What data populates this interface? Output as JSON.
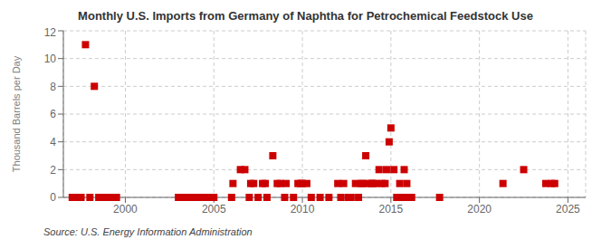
{
  "chart_data": {
    "type": "scatter",
    "title": "Monthly U.S. Imports from Germany of Naphtha for Petrochemical Feedstock Use",
    "ylabel": "Thousand Barrels per Day",
    "source": "Source: U.S. Energy Information Administration",
    "color": "#cc0000",
    "marker": "square",
    "grid": true,
    "xlim": [
      1996.5,
      2026
    ],
    "ylim": [
      0,
      12
    ],
    "yticks": [
      0,
      2,
      4,
      6,
      8,
      10,
      12
    ],
    "xticks": [
      2000,
      2005,
      2010,
      2015,
      2020,
      2025
    ],
    "x": [
      1997.0,
      1997.25,
      1997.5,
      1997.75,
      1998.0,
      1998.25,
      1998.5,
      1998.75,
      1999.0,
      1999.25,
      1999.5,
      2003.0,
      2003.2,
      2003.4,
      2003.6,
      2003.8,
      2004.0,
      2004.2,
      2004.4,
      2004.6,
      2004.8,
      2005.0,
      2006.0,
      2006.08,
      2006.5,
      2006.75,
      2007.0,
      2007.08,
      2007.25,
      2007.5,
      2007.75,
      2007.9,
      2008.0,
      2008.33,
      2008.58,
      2008.75,
      2009.0,
      2009.08,
      2009.5,
      2009.75,
      2009.9,
      2010.0,
      2010.25,
      2010.5,
      2011.0,
      2011.5,
      2012.0,
      2012.17,
      2012.33,
      2012.58,
      2012.75,
      2013.0,
      2013.17,
      2013.33,
      2013.42,
      2013.58,
      2013.75,
      2013.9,
      2014.0,
      2014.17,
      2014.33,
      2014.5,
      2014.67,
      2014.75,
      2014.9,
      2015.0,
      2015.17,
      2015.33,
      2015.5,
      2015.67,
      2015.75,
      2015.9,
      2016.0,
      2016.17,
      2017.75,
      2021.33,
      2022.5,
      2023.75,
      2024.08,
      2024.25
    ],
    "values": [
      0,
      0,
      0,
      11,
      0,
      8,
      0,
      0,
      0,
      0,
      0,
      0,
      0,
      0,
      0,
      0,
      0,
      0,
      0,
      0,
      0,
      0,
      0,
      1,
      2,
      2,
      0,
      1,
      1,
      0,
      1,
      1,
      0,
      3,
      1,
      1,
      0,
      1,
      0,
      1,
      1,
      1,
      1,
      0,
      0,
      0,
      1,
      0,
      1,
      0,
      0,
      1,
      0,
      1,
      1,
      3,
      1,
      1,
      1,
      1,
      2,
      1,
      1,
      2,
      4,
      5,
      2,
      0,
      1,
      0,
      2,
      1,
      0,
      0,
      0,
      1,
      2,
      1,
      1,
      1
    ]
  }
}
